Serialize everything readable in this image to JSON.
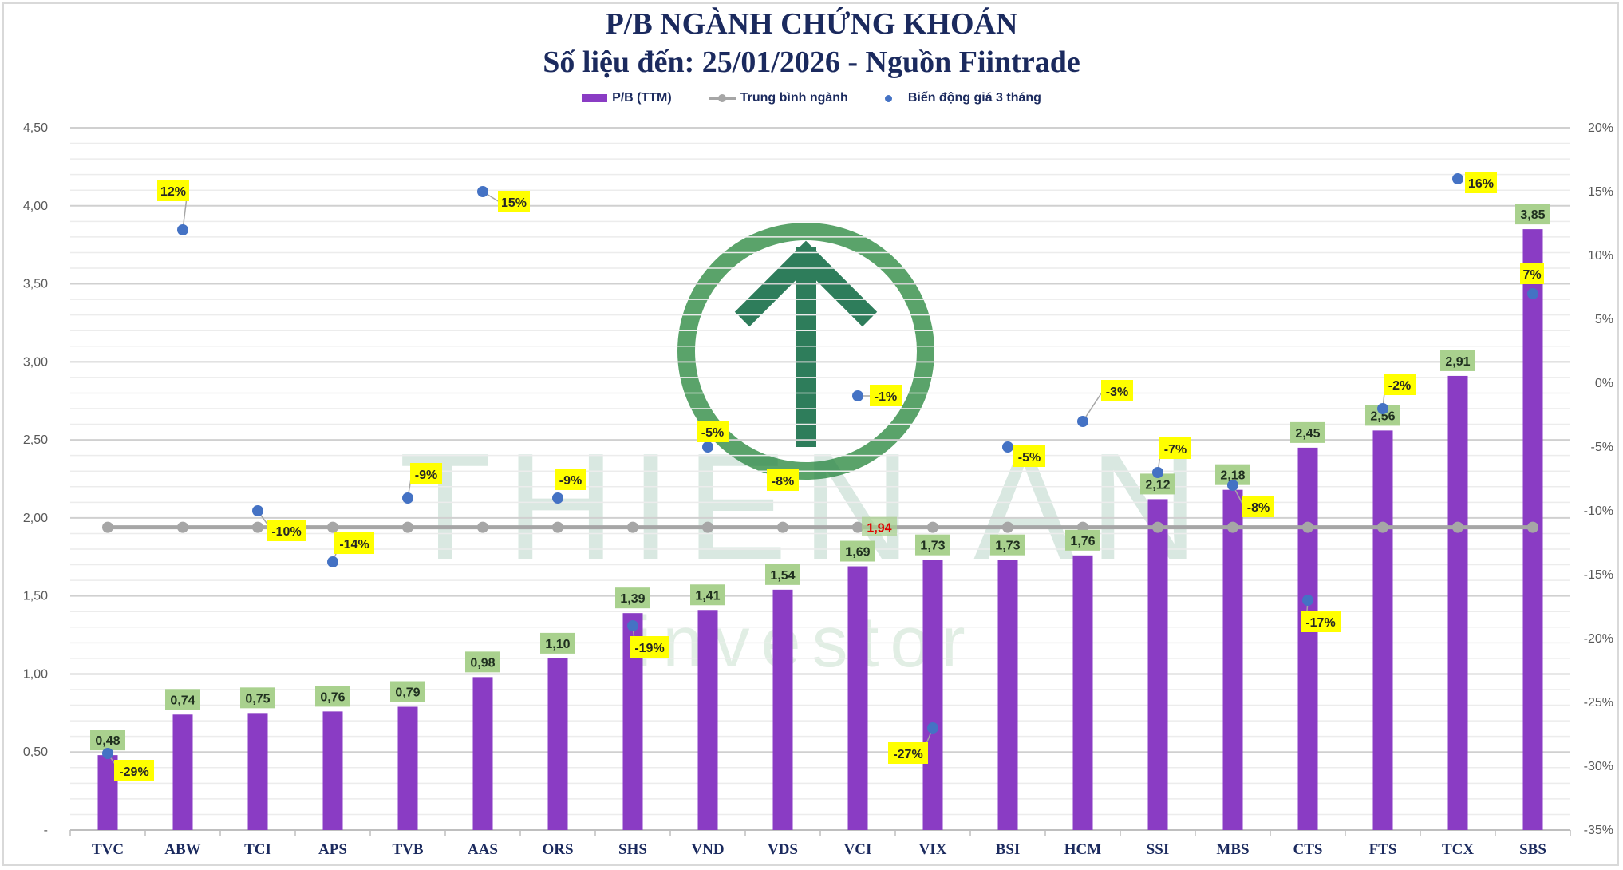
{
  "chart_data": {
    "type": "bar",
    "title": "P/B NGÀNH CHỨNG KHOÁN",
    "subtitle": "Số liệu đến: 25/01/2026 - Nguồn Fiintrade",
    "categories": [
      "TVC",
      "ABW",
      "TCI",
      "APS",
      "TVB",
      "AAS",
      "ORS",
      "SHS",
      "VND",
      "VDS",
      "VCI",
      "VIX",
      "BSI",
      "HCM",
      "SSI",
      "MBS",
      "CTS",
      "FTS",
      "TCX",
      "SBS"
    ],
    "series": [
      {
        "name": "P/B (TTM)",
        "type": "bar",
        "axis": "left",
        "color": "#8a3cc4",
        "values": [
          0.48,
          0.74,
          0.75,
          0.76,
          0.79,
          0.98,
          1.1,
          1.39,
          1.41,
          1.54,
          1.69,
          1.73,
          1.73,
          1.76,
          2.12,
          2.18,
          2.45,
          2.56,
          2.91,
          3.85
        ],
        "labels": [
          "0,48",
          "0,74",
          "0,75",
          "0,76",
          "0,79",
          "0,98",
          "1,10",
          "1,39",
          "1,41",
          "1,54",
          "1,69",
          "1,73",
          "1,73",
          "1,76",
          "2,12",
          "2,18",
          "2,45",
          "2,56",
          "2,91",
          "3,85"
        ]
      },
      {
        "name": "Trung bình ngành",
        "type": "line",
        "axis": "left",
        "color": "#a6a6a6",
        "value": 1.94,
        "label": "1,94"
      },
      {
        "name": "Biến động giá 3 tháng",
        "type": "scatter",
        "axis": "right",
        "color": "#4472c4",
        "values": [
          -29,
          12,
          -10,
          -14,
          -9,
          15,
          -9,
          -19,
          -5,
          -8,
          -1,
          -27,
          -5,
          -3,
          -7,
          -8,
          -17,
          -2,
          16,
          7
        ],
        "labels": [
          "-29%",
          "12%",
          "-10%",
          "-14%",
          "-9%",
          "15%",
          "-9%",
          "-19%",
          "-5%",
          "-8%",
          "-1%",
          "-27%",
          "-5%",
          "-3%",
          "-7%",
          "-8%",
          "-17%",
          "-2%",
          "16%",
          "7%"
        ]
      }
    ],
    "yleft": {
      "lim": [
        0,
        4.5
      ],
      "ticks": [
        "-",
        "0,50",
        "1,00",
        "1,50",
        "2,00",
        "2,50",
        "3,00",
        "3,50",
        "4,00",
        "4,50"
      ]
    },
    "yright": {
      "lim": [
        -35,
        20
      ],
      "ticks": [
        "-35%",
        "-30%",
        "-25%",
        "-20%",
        "-15%",
        "-10%",
        "-5%",
        "0%",
        "5%",
        "10%",
        "15%",
        "20%"
      ]
    },
    "legend_position": "top",
    "grid": true,
    "colors": {
      "label_bar_bg": "#a9d18e",
      "label_price_bg": "#ffff00",
      "avg_label": "#e00000"
    }
  },
  "watermark": {
    "line1": "THIEN AN",
    "line2": "investor"
  }
}
